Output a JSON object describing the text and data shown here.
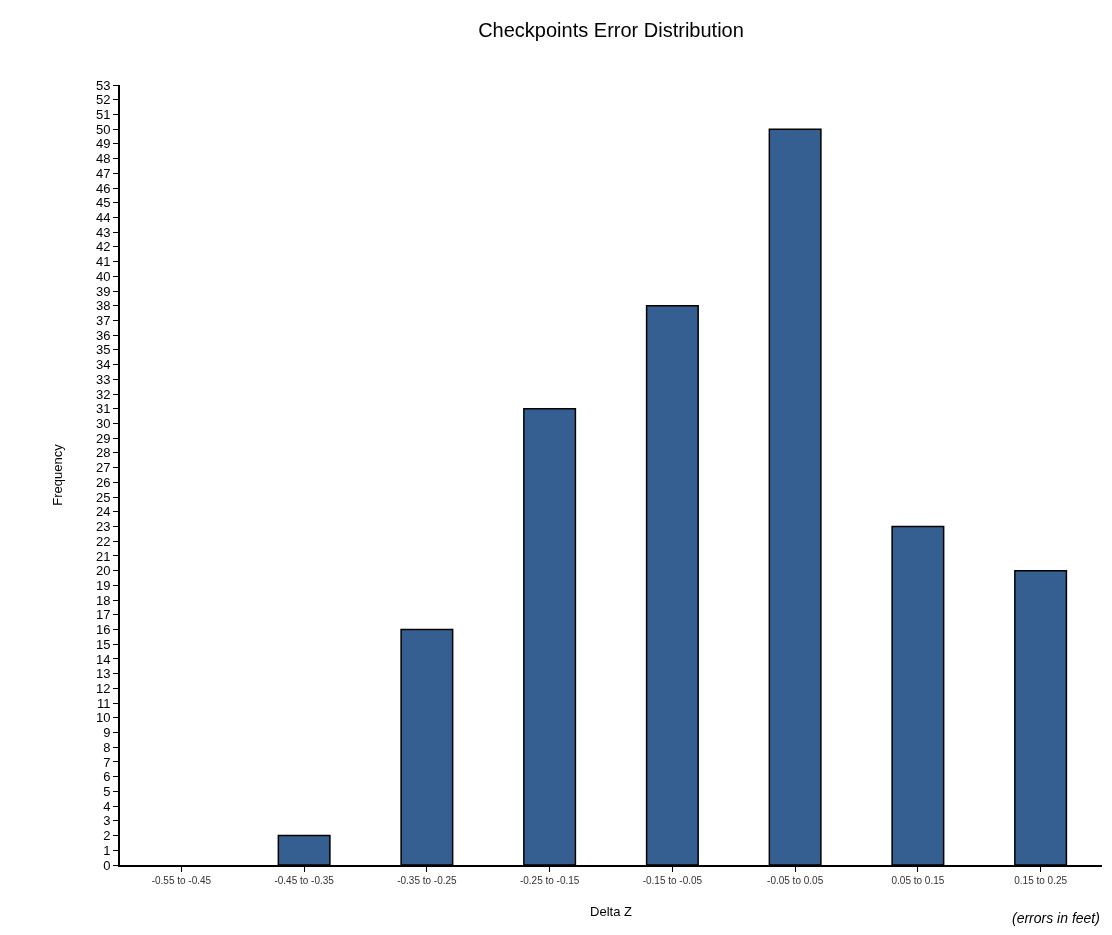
{
  "chart_data": {
    "type": "bar",
    "title": "Checkpoints Error Distribution",
    "xlabel": "Delta Z",
    "ylabel": "Frequency",
    "annotations": [
      "(errors in feet)"
    ],
    "categories": [
      "-0.55 to -0.45",
      "-0.45 to -0.35",
      "-0.35 to -0.25",
      "-0.25 to -0.15",
      "-0.15 to -0.05",
      "-0.05 to 0.05",
      "0.05 to 0.15",
      "0.15 to 0.25"
    ],
    "values": [
      0,
      2,
      16,
      31,
      38,
      50,
      23,
      20
    ],
    "color": "#355f91",
    "ylim": [
      0,
      53
    ],
    "yticks": [
      0,
      1,
      2,
      3,
      4,
      5,
      6,
      7,
      8,
      9,
      10,
      11,
      12,
      13,
      14,
      15,
      16,
      17,
      18,
      19,
      20,
      21,
      22,
      23,
      24,
      25,
      26,
      27,
      28,
      29,
      30,
      31,
      32,
      33,
      34,
      35,
      36,
      37,
      38,
      39,
      40,
      41,
      42,
      43,
      44,
      45,
      46,
      47,
      48,
      49,
      50,
      51,
      52,
      53
    ],
    "grid": false
  }
}
